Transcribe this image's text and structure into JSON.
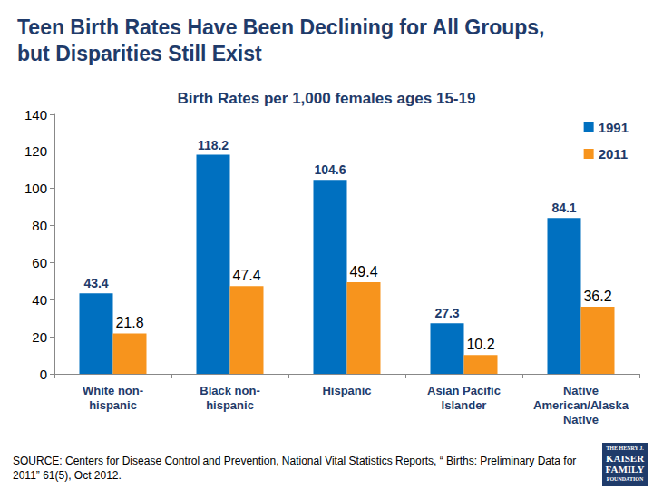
{
  "chart_data": {
    "type": "bar",
    "title": "Teen Birth Rates Have Been Declining for All Groups,\nbut Disparities Still Exist",
    "subtitle": "Birth Rates per 1,000 females ages 15-19",
    "categories": [
      "White non-\nhispanic",
      "Black non-\nhispanic",
      "Hispanic",
      "Asian Pacific\nIslander",
      "Native\nAmerican/Alaska\nNative"
    ],
    "series": [
      {
        "name": "1991",
        "color": "#0070C0",
        "values": [
          43.4,
          118.2,
          104.6,
          27.3,
          84.1
        ]
      },
      {
        "name": "2011",
        "color": "#F7941D",
        "values": [
          21.8,
          47.4,
          49.4,
          10.2,
          36.2
        ]
      }
    ],
    "ylim": [
      0,
      140
    ],
    "yticks": [
      0,
      20,
      40,
      60,
      80,
      100,
      120,
      140
    ],
    "grid": false,
    "legend": "top-right",
    "data_labels": true,
    "source": "SOURCE: Centers for Disease Control and Prevention, National Vital Statistics Reports, “ Births: Preliminary Data for\n2011” 61(5), Oct 2012.",
    "logo": [
      "THE HENRY J.",
      "KAISER",
      "FAMILY",
      "FOUNDATION"
    ]
  }
}
